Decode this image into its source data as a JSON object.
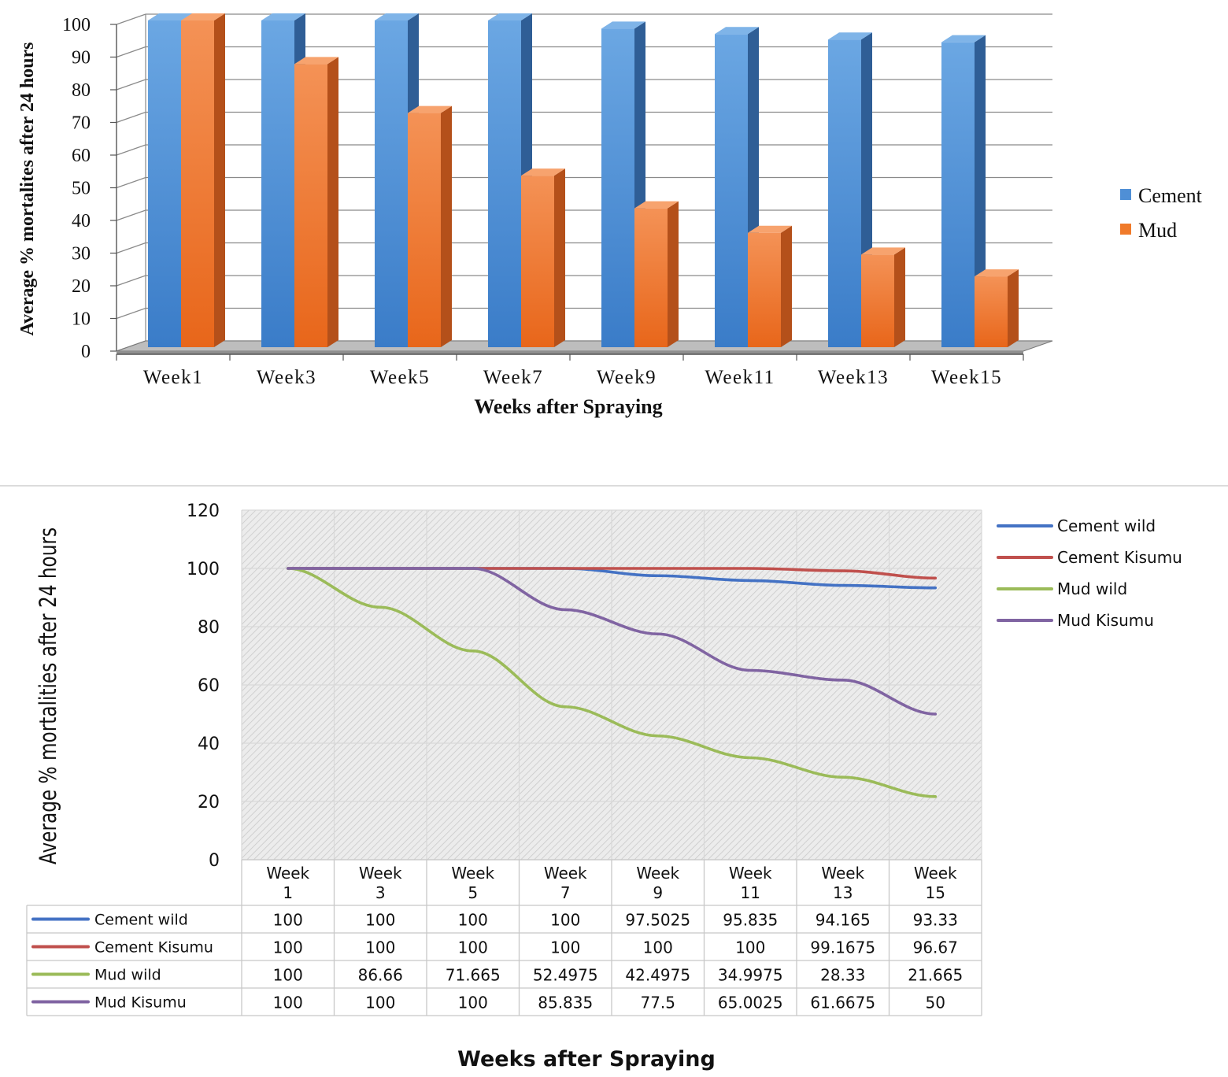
{
  "chart_data": [
    {
      "type": "bar",
      "xlabel": "Weeks after Spraying",
      "ylabel": "Average % mortalites after 24 hours",
      "ylim": [
        0,
        100
      ],
      "yticks": [
        0,
        10,
        20,
        30,
        40,
        50,
        60,
        70,
        80,
        90,
        100
      ],
      "grid": true,
      "legend_position": "right",
      "categories": [
        "Week1",
        "Week3",
        "Week5",
        "Week7",
        "Week9",
        "Week11",
        "Week13",
        "Week15"
      ],
      "series": [
        {
          "name": "Cement",
          "color": "#4F8FD6",
          "values": [
            100,
            100,
            100,
            100,
            97.5025,
            95.835,
            94.165,
            93.33
          ]
        },
        {
          "name": "Mud",
          "color": "#F07A2A",
          "values": [
            100,
            86.66,
            71.665,
            52.4975,
            42.4975,
            34.9975,
            28.33,
            21.665
          ]
        }
      ]
    },
    {
      "type": "line",
      "xlabel": "Weeks after Spraying",
      "ylabel": "Average % mortalities after 24 hours",
      "ylim": [
        0,
        120
      ],
      "yticks": [
        0,
        20,
        40,
        60,
        80,
        100,
        120
      ],
      "grid": true,
      "legend_position": "right",
      "categories": [
        "Week 1",
        "Week 3",
        "Week 5",
        "Week 7",
        "Week 9",
        "Week 11",
        "Week 13",
        "Week 15"
      ],
      "category_lines": [
        [
          "Week",
          "1"
        ],
        [
          "Week",
          "3"
        ],
        [
          "Week",
          "5"
        ],
        [
          "Week",
          "7"
        ],
        [
          "Week",
          "9"
        ],
        [
          "Week",
          "11"
        ],
        [
          "Week",
          "13"
        ],
        [
          "Week",
          "15"
        ]
      ],
      "series": [
        {
          "name": "Cement wild",
          "color": "#4472C4",
          "values": [
            100,
            100,
            100,
            100,
            97.5025,
            95.835,
            94.165,
            93.33
          ]
        },
        {
          "name": "Cement Kisumu",
          "color": "#C0504D",
          "values": [
            100,
            100,
            100,
            100,
            100,
            100,
            99.1675,
            96.67
          ]
        },
        {
          "name": "Mud wild",
          "color": "#9BBB59",
          "values": [
            100,
            86.66,
            71.665,
            52.4975,
            42.4975,
            34.9975,
            28.33,
            21.665
          ]
        },
        {
          "name": "Mud Kisumu",
          "color": "#8064A2",
          "values": [
            100,
            100,
            100,
            85.835,
            77.5,
            65.0025,
            61.6675,
            50
          ]
        }
      ]
    }
  ]
}
